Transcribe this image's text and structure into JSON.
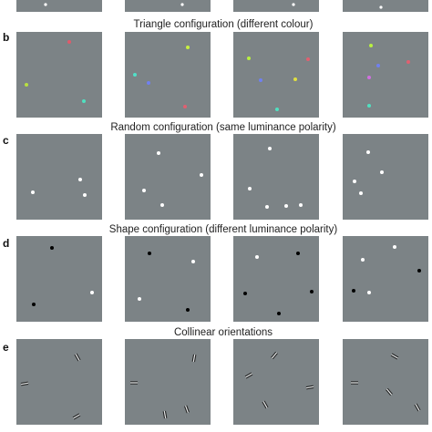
{
  "sections": [
    {
      "letter": "b",
      "title": "Triangle configuration (different colour)"
    },
    {
      "letter": "c",
      "title": "Random configuration (same luminance polarity)"
    },
    {
      "letter": "d",
      "title": "Shape configuration (different luminance polarity)"
    },
    {
      "letter": "e",
      "title": "Collinear orientations"
    }
  ]
}
